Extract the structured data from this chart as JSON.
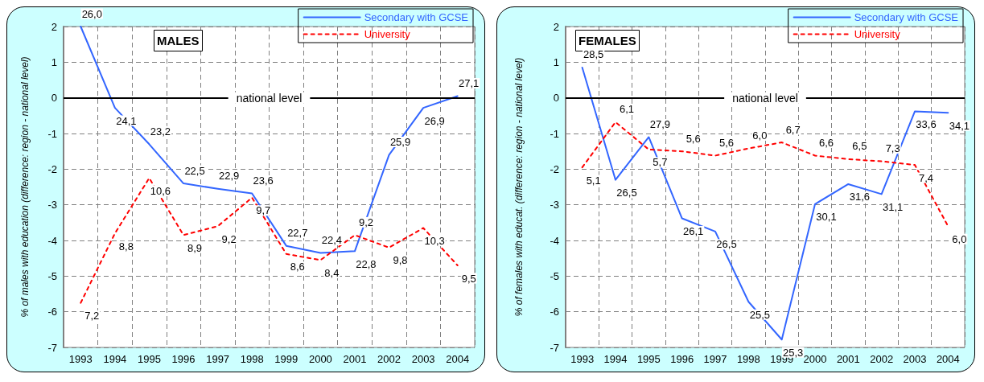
{
  "chart_data": [
    {
      "type": "line",
      "title": "MALES",
      "ylabel": "% of males with education (difference: region - national level)",
      "categories": [
        "1993",
        "1994",
        "1995",
        "1996",
        "1997",
        "1998",
        "1999",
        "2000",
        "2001",
        "2002",
        "2003",
        "2004"
      ],
      "series": [
        {
          "name": "Secondary with GCSE",
          "color": "#3366ff",
          "line_style": "solid",
          "values": [
            2.0,
            -0.28,
            -1.3,
            -2.4,
            -2.55,
            -2.68,
            -4.15,
            -4.35,
            -4.3,
            -1.6,
            -0.28,
            0.05
          ]
        },
        {
          "name": "University",
          "color": "#ff0000",
          "line_style": "dashed",
          "values": [
            -5.75,
            -3.8,
            -2.25,
            -3.85,
            -3.6,
            -2.8,
            -4.38,
            -4.55,
            -3.85,
            -4.2,
            -3.65,
            -4.7
          ]
        }
      ],
      "annotations": [
        {
          "text": "26,0",
          "x": "1993",
          "y": 2.0
        },
        {
          "text": "24,1",
          "x": "1994",
          "y": -0.28
        },
        {
          "text": "23,2",
          "x": "1995",
          "y": -1.3
        },
        {
          "text": "22,5",
          "x": "1996",
          "y": -2.4
        },
        {
          "text": "22,9",
          "x": "1997",
          "y": -2.55
        },
        {
          "text": "23,6",
          "x": "1998",
          "y": -2.68
        },
        {
          "text": "22,7",
          "x": "1999",
          "y": -4.15
        },
        {
          "text": "22,4",
          "x": "2000",
          "y": -4.35
        },
        {
          "text": "22,8",
          "x": "2001",
          "y": -4.3
        },
        {
          "text": "25,9",
          "x": "2002",
          "y": -1.6
        },
        {
          "text": "26,9",
          "x": "2003",
          "y": -0.28
        },
        {
          "text": "27,1",
          "x": "2004",
          "y": 0.05
        },
        {
          "text": "7,2",
          "x": "1993",
          "y": -5.75
        },
        {
          "text": "8,8",
          "x": "1994",
          "y": -3.8
        },
        {
          "text": "10,6",
          "x": "1995",
          "y": -2.25
        },
        {
          "text": "8,9",
          "x": "1996",
          "y": -3.85
        },
        {
          "text": "9,2",
          "x": "1997",
          "y": -3.6
        },
        {
          "text": "9,7",
          "x": "1998",
          "y": -2.8
        },
        {
          "text": "8,6",
          "x": "1999",
          "y": -4.38
        },
        {
          "text": "8,4",
          "x": "2000",
          "y": -4.55
        },
        {
          "text": "9,2",
          "x": "2001",
          "y": -3.85
        },
        {
          "text": "9,8",
          "x": "2002",
          "y": -4.2
        },
        {
          "text": "10,3",
          "x": "2003",
          "y": -3.65
        },
        {
          "text": "9,5",
          "x": "2004",
          "y": -4.7
        }
      ],
      "ylim": [
        -7,
        2
      ],
      "yticks": [
        -7,
        -6,
        -5,
        -4,
        -3,
        -2,
        -1,
        0,
        1,
        2
      ],
      "grid": true,
      "legend": "top right",
      "marker": "none",
      "ref_lines": [
        {
          "axis": "y",
          "value": 0,
          "label": "national level",
          "color": "#000000"
        }
      ]
    },
    {
      "type": "line",
      "title": "FEMALES",
      "ylabel": "% of females with educat. (difference: region - national level)",
      "categories": [
        "1993",
        "1994",
        "1995",
        "1996",
        "1997",
        "1998",
        "1999",
        "2000",
        "2001",
        "2002",
        "2003",
        "2004"
      ],
      "series": [
        {
          "name": "Secondary with GCSE",
          "color": "#3366ff",
          "line_style": "solid",
          "values": [
            0.85,
            -2.3,
            -1.1,
            -3.38,
            -3.75,
            -5.72,
            -6.78,
            -2.98,
            -2.42,
            -2.7,
            -0.38,
            -0.42
          ]
        },
        {
          "name": "University",
          "color": "#ff0000",
          "line_style": "dashed",
          "values": [
            -1.95,
            -0.68,
            -1.45,
            -1.5,
            -1.62,
            -1.42,
            -1.25,
            -1.62,
            -1.72,
            -1.78,
            -1.88,
            -3.6
          ]
        }
      ],
      "annotations": [
        {
          "text": "28,5",
          "x": "1993",
          "y": 0.85
        },
        {
          "text": "26,5",
          "x": "1994",
          "y": -2.3
        },
        {
          "text": "27,9",
          "x": "1995",
          "y": -1.1
        },
        {
          "text": "26,1",
          "x": "1996",
          "y": -3.38
        },
        {
          "text": "26,5",
          "x": "1997",
          "y": -3.75
        },
        {
          "text": "25,5",
          "x": "1998",
          "y": -5.72
        },
        {
          "text": "25,3",
          "x": "1999",
          "y": -6.78
        },
        {
          "text": "30,1",
          "x": "2000",
          "y": -2.98
        },
        {
          "text": "31,6",
          "x": "2001",
          "y": -2.42
        },
        {
          "text": "31,1",
          "x": "2002",
          "y": -2.7
        },
        {
          "text": "33,6",
          "x": "2003",
          "y": -0.38
        },
        {
          "text": "34,1",
          "x": "2004",
          "y": -0.42
        },
        {
          "text": "5,1",
          "x": "1993",
          "y": -1.95
        },
        {
          "text": "6,1",
          "x": "1994",
          "y": -0.68
        },
        {
          "text": "5,7",
          "x": "1995",
          "y": -1.45
        },
        {
          "text": "5,6",
          "x": "1996",
          "y": -1.5
        },
        {
          "text": "5,6",
          "x": "1997",
          "y": -1.62
        },
        {
          "text": "6,0",
          "x": "1998",
          "y": -1.42
        },
        {
          "text": "6,7",
          "x": "1999",
          "y": -1.25
        },
        {
          "text": "6,6",
          "x": "2000",
          "y": -1.62
        },
        {
          "text": "6,5",
          "x": "2001",
          "y": -1.72
        },
        {
          "text": "7,3",
          "x": "2002",
          "y": -1.78
        },
        {
          "text": "7,4",
          "x": "2003",
          "y": -1.88
        },
        {
          "text": "6,0",
          "x": "2004",
          "y": -3.6
        }
      ],
      "ylim": [
        -7,
        2
      ],
      "yticks": [
        -7,
        -6,
        -5,
        -4,
        -3,
        -2,
        -1,
        0,
        1,
        2
      ],
      "grid": true,
      "legend": "top right",
      "marker": "none",
      "ref_lines": [
        {
          "axis": "y",
          "value": 0,
          "label": "national level",
          "color": "#000000"
        }
      ]
    }
  ]
}
